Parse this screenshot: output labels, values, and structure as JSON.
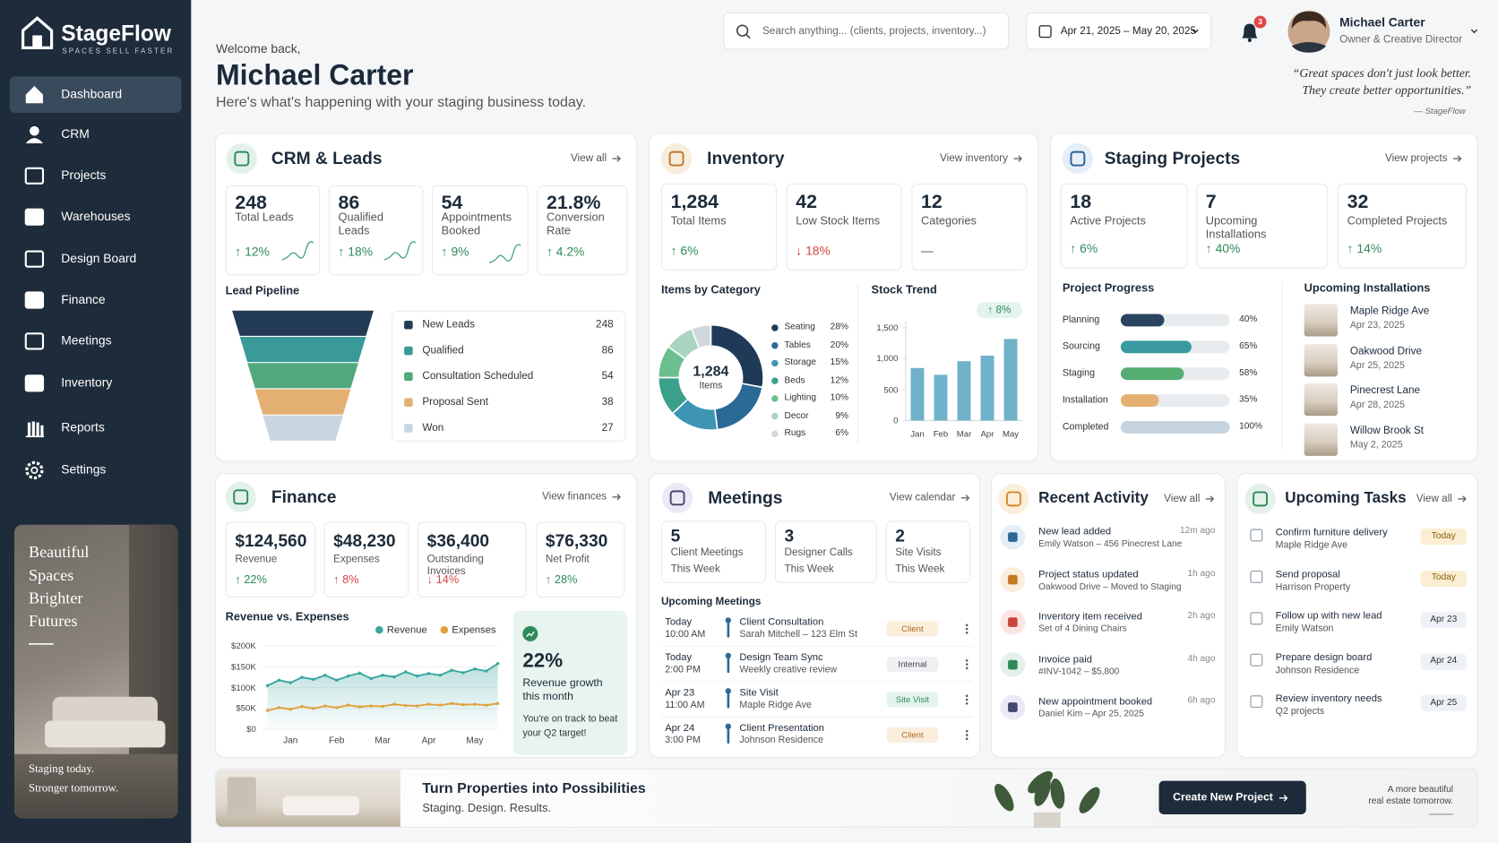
{
  "brand": {
    "name": "StageFlow",
    "tagline": "SPACES SELL FASTER"
  },
  "nav": [
    "Dashboard",
    "CRM",
    "Projects",
    "Warehouses",
    "Design Board",
    "Finance",
    "Meetings",
    "Inventory",
    "Reports",
    "Settings"
  ],
  "promo": {
    "lines": [
      "Beautiful",
      "Spaces",
      "Brighter",
      "Futures"
    ],
    "footer": [
      "Staging today.",
      "Stronger tomorrow."
    ]
  },
  "header": {
    "welcome": "Welcome back,",
    "name": "Michael Carter",
    "subtitle": "Here's what's happening with your staging business today.",
    "search": "Search anything... (clients, projects, inventory...)",
    "date_range": "Apr 21, 2025 – May 20, 2025",
    "notifications": 3,
    "user_name": "Michael Carter",
    "user_role": "Owner & Creative Director",
    "quote": [
      "“Great spaces don't just look better.",
      "They create better opportunities.”"
    ],
    "quote_source": "— StageFlow"
  },
  "crm": {
    "title": "CRM & Leads",
    "link": "View all",
    "kpis": [
      {
        "value": "248",
        "label": "Total Leads",
        "change": "↑ 12%",
        "color": "#2e8a5a"
      },
      {
        "value": "86",
        "label": "Qualified Leads",
        "change": "↑ 18%",
        "color": "#2e8a5a"
      },
      {
        "value": "54",
        "label": "Appointments Booked",
        "change": "↑ 9%",
        "color": "#2e8a5a"
      },
      {
        "value": "21.8%",
        "label": "Conversion Rate",
        "change": "↑ 4.2%",
        "color": "#2e8a5a"
      }
    ]
  },
  "inventory": {
    "title": "Inventory",
    "link": "View inventory",
    "kpis": [
      {
        "value": "1,284",
        "label": "Total Items",
        "change": "↑ 6%",
        "color": "#2e8a5a"
      },
      {
        "value": "42",
        "label": "Low Stock Items",
        "change": "↓ 18%",
        "color": "#d64545"
      },
      {
        "value": "12",
        "label": "Categories",
        "change": "—",
        "color": "#555555"
      }
    ]
  },
  "staging": {
    "title": "Staging Projects",
    "link": "View projects",
    "kpis": [
      {
        "value": "18",
        "label": "Active Projects",
        "change": "↑ 6%",
        "color": "#2e8a5a"
      },
      {
        "value": "7",
        "label": "Upcoming Installations",
        "change": "↑ 40%",
        "color": "#2e8a5a"
      },
      {
        "value": "32",
        "label": "Completed Projects",
        "change": "↑ 14%",
        "color": "#2e8a5a"
      }
    ],
    "installations_title": "Upcoming Installations",
    "installations": [
      {
        "name": "Maple Ridge Ave",
        "date": "Apr 23, 2025"
      },
      {
        "name": "Oakwood Drive",
        "date": "Apr 25, 2025"
      },
      {
        "name": "Pinecrest Lane",
        "date": "Apr 28, 2025"
      },
      {
        "name": "Willow Brook St",
        "date": "May 2, 2025"
      }
    ]
  },
  "finance": {
    "title": "Finance",
    "link": "View finances",
    "kpis": [
      {
        "value": "$124,560",
        "label": "Revenue",
        "change": "↑ 22%",
        "color": "#2e8a5a"
      },
      {
        "value": "$48,230",
        "label": "Expenses",
        "change": "↑ 8%",
        "color": "#d64545"
      },
      {
        "value": "$36,400",
        "label": "Outstanding Invoices",
        "change": "↓ 14%",
        "color": "#d64545"
      },
      {
        "value": "$76,330",
        "label": "Net Profit",
        "change": "↑ 28%",
        "color": "#2e8a5a"
      }
    ],
    "insight": {
      "value": "22%",
      "label": "Revenue growth this month",
      "note": "You're on track to beat your Q2 target!"
    }
  },
  "meetings": {
    "title": "Meetings",
    "link": "View calendar",
    "kpis": [
      {
        "value": "5",
        "label": "Client Meetings",
        "sub": "This Week"
      },
      {
        "value": "3",
        "label": "Designer Calls",
        "sub": "This Week"
      },
      {
        "value": "2",
        "label": "Site Visits",
        "sub": "This Week"
      }
    ],
    "list_title": "Upcoming Meetings",
    "items": [
      {
        "date": "Today",
        "time": "10:00 AM",
        "title": "Client Consultation",
        "detail": "Sarah Mitchell – 123 Elm St",
        "tag": "Client"
      },
      {
        "date": "Today",
        "time": "2:00 PM",
        "title": "Design Team Sync",
        "detail": "Weekly creative review",
        "tag": "Internal"
      },
      {
        "date": "Apr 23",
        "time": "11:00 AM",
        "title": "Site Visit",
        "detail": "Maple Ridge Ave",
        "tag": "Site Visit"
      },
      {
        "date": "Apr 24",
        "time": "3:00 PM",
        "title": "Client Presentation",
        "detail": "Johnson Residence",
        "tag": "Client"
      }
    ]
  },
  "activity": {
    "title": "Recent Activity",
    "link": "View all",
    "items": [
      {
        "title": "New lead added",
        "detail": "Emily Watson – 456 Pinecrest Lane",
        "time": "12m ago"
      },
      {
        "title": "Project status updated",
        "detail": "Oakwood Drive – Moved to Staging",
        "time": "1h ago"
      },
      {
        "title": "Inventory item received",
        "detail": "Set of 4 Dining Chairs",
        "time": "2h ago"
      },
      {
        "title": "Invoice paid",
        "detail": "#INV-1042 – $5,800",
        "time": "4h ago"
      },
      {
        "title": "New appointment booked",
        "detail": "Daniel Kim – Apr 25, 2025",
        "time": "6h ago"
      }
    ]
  },
  "tasks": {
    "title": "Upcoming Tasks",
    "link": "View all",
    "items": [
      {
        "title": "Confirm furniture delivery",
        "detail": "Maple Ridge Ave",
        "due": "Today"
      },
      {
        "title": "Send proposal",
        "detail": "Harrison Property",
        "due": "Today"
      },
      {
        "title": "Follow up with new lead",
        "detail": "Emily Watson",
        "due": "Apr 23"
      },
      {
        "title": "Prepare design board",
        "detail": "Johnson Residence",
        "due": "Apr 24"
      },
      {
        "title": "Review inventory needs",
        "detail": "Q2 projects",
        "due": "Apr 25"
      }
    ]
  },
  "banner": {
    "title": "Turn Properties into Possibilities",
    "subtitle": "Staging. Design. Results.",
    "button": "Create New Project",
    "note": [
      "A more beautiful",
      "real estate tomorrow."
    ]
  },
  "chart_data": [
    {
      "type": "funnel",
      "title": "Lead Pipeline",
      "categories": [
        "New Leads",
        "Qualified",
        "Consultation Scheduled",
        "Proposal Sent",
        "Won"
      ],
      "values": [
        248,
        86,
        54,
        38,
        27
      ],
      "colors": [
        "#243b55",
        "#3a9a9a",
        "#52a87d",
        "#e3b071",
        "#c9d6e1"
      ]
    },
    {
      "type": "pie",
      "title": "Items by Category",
      "center_value": "1,284",
      "center_label": "Items",
      "categories": [
        "Seating",
        "Tables",
        "Storage",
        "Beds",
        "Lighting",
        "Decor",
        "Rugs"
      ],
      "values": [
        28,
        20,
        15,
        12,
        10,
        9,
        6
      ],
      "value_labels": [
        "28%",
        "20%",
        "15%",
        "12%",
        "10%",
        "9%",
        "6%"
      ],
      "colors": [
        "#1e3a56",
        "#2c6a96",
        "#3d94b5",
        "#3aa08a",
        "#6bbf8f",
        "#a9d5c0",
        "#d0d7dd"
      ]
    },
    {
      "type": "bar",
      "title": "Stock Trend",
      "annotation": "↑ 8%",
      "categories": [
        "Jan",
        "Feb",
        "Mar",
        "Apr",
        "May"
      ],
      "values": [
        850,
        740,
        960,
        1050,
        1320
      ],
      "color": "#6fb2c9",
      "ylim": [
        0,
        1600
      ],
      "yticks": [
        0,
        500,
        {
          "value": 1000,
          "label": "1,000"
        },
        {
          "value": 1500,
          "label": "1,500"
        }
      ],
      "grid": false
    },
    {
      "type": "progress",
      "title": "Project Progress",
      "categories": [
        "Planning",
        "Sourcing",
        "Staging",
        "Installation",
        "Completed"
      ],
      "values": [
        40,
        65,
        58,
        35,
        100
      ],
      "value_labels": [
        "40%",
        "65%",
        "58%",
        "35%",
        "100%"
      ],
      "xlim": [
        0,
        100
      ],
      "colors": [
        "#2a4460",
        "#3a9a9f",
        "#55ad72",
        "#e3b071",
        "#c5d3df"
      ]
    },
    {
      "type": "line",
      "title": "Revenue vs. Expenses",
      "categories": [
        null,
        null,
        "Jan",
        null,
        null,
        null,
        "Feb",
        null,
        null,
        null,
        "Mar",
        null,
        null,
        null,
        "Apr",
        null,
        null,
        null,
        "May",
        null,
        null
      ],
      "series": [
        {
          "name": "Revenue",
          "color": "#3aa6a0",
          "values": [
            105000,
            118000,
            112000,
            125000,
            120000,
            130000,
            118000,
            128000,
            135000,
            122000,
            130000,
            126000,
            138000,
            128000,
            134000,
            130000,
            142000,
            136000,
            145000,
            140000,
            158000
          ]
        },
        {
          "name": "Expenses",
          "color": "#e0a23c",
          "values": [
            45000,
            52000,
            48000,
            55000,
            50000,
            56000,
            52000,
            58000,
            54000,
            56000,
            55000,
            60000,
            57000,
            56000,
            60000,
            58000,
            62000,
            59000,
            60000,
            58000,
            62000
          ]
        }
      ],
      "ylim": [
        0,
        200000
      ],
      "yticks": [
        {
          "value": 0,
          "label": "$0"
        },
        {
          "value": 50000,
          "label": "$50K"
        },
        {
          "value": 100000,
          "label": "$100K"
        },
        {
          "value": 150000,
          "label": "$150K"
        },
        {
          "value": 200000,
          "label": "$200K"
        }
      ],
      "grid": true
    }
  ]
}
